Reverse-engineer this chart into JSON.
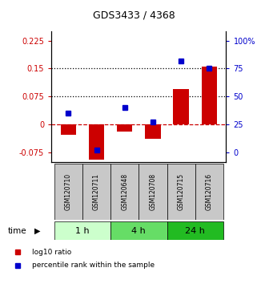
{
  "title": "GDS3433 / 4368",
  "samples": [
    "GSM120710",
    "GSM120711",
    "GSM120648",
    "GSM120708",
    "GSM120715",
    "GSM120716"
  ],
  "log10_ratio": [
    -0.028,
    -0.095,
    -0.018,
    -0.038,
    0.095,
    0.155
  ],
  "percentile_rank": [
    35,
    2,
    40,
    27,
    82,
    75
  ],
  "left_ylim": [
    -0.1,
    0.25
  ],
  "left_yticks": [
    -0.075,
    0,
    0.075,
    0.15,
    0.225
  ],
  "right_tick_positions": [
    -0.075,
    0.0,
    0.075,
    0.15,
    0.225
  ],
  "right_tick_labels": [
    "0",
    "25",
    "50",
    "75",
    "100%"
  ],
  "hlines": [
    0.075,
    0.15
  ],
  "bar_color": "#cc0000",
  "dot_color": "#0000cc",
  "zero_line_color": "#cc0000",
  "bg_color": "#ffffff",
  "left_tick_color": "#cc0000",
  "right_tick_color": "#0000cc",
  "group_defs": [
    {
      "label": "1 h",
      "start": 0,
      "end": 2,
      "color": "#ccffcc"
    },
    {
      "label": "4 h",
      "start": 2,
      "end": 4,
      "color": "#66dd66"
    },
    {
      "label": "24 h",
      "start": 4,
      "end": 6,
      "color": "#22bb22"
    }
  ]
}
